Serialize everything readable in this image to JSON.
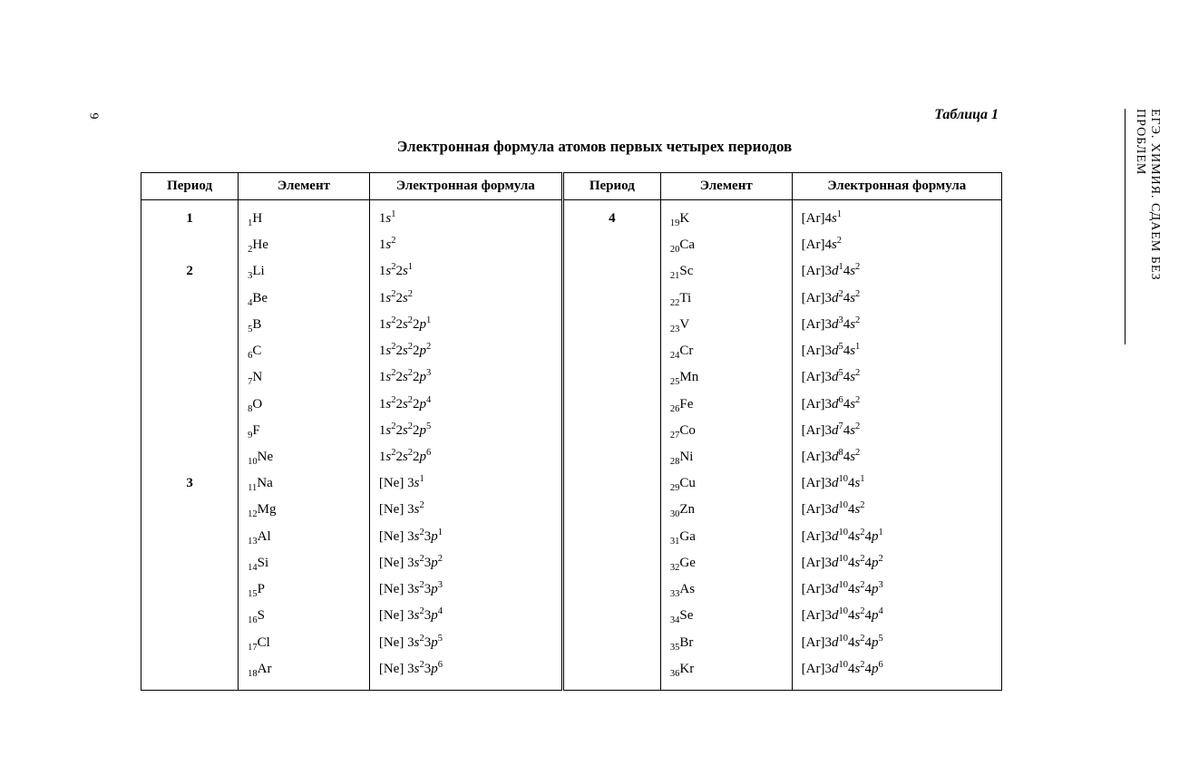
{
  "page_number_left": "6",
  "side_text": "ЕГЭ. ХИМИЯ. СДАЕМ БЕЗ ПРОБЛЕМ",
  "table_label": "Таблица 1",
  "title": "Электронная формула атомов первых четырех периодов",
  "headers": {
    "period": "Период",
    "element": "Элемент",
    "formula": "Электронная формула"
  },
  "rows": [
    {
      "p1": "1",
      "z1": "1",
      "sym1": "H",
      "f1": [
        [
          "1"
        ],
        [
          "s",
          "1"
        ]
      ],
      "p2": "4",
      "z2": "19",
      "sym2": "K",
      "f2": [
        [
          "[Ar]4"
        ],
        [
          "s",
          "1"
        ]
      ]
    },
    {
      "p1": "",
      "z1": "2",
      "sym1": "He",
      "f1": [
        [
          "1"
        ],
        [
          "s",
          "2"
        ]
      ],
      "p2": "",
      "z2": "20",
      "sym2": "Ca",
      "f2": [
        [
          "[Ar]4"
        ],
        [
          "s",
          "2"
        ]
      ]
    },
    {
      "p1": "2",
      "z1": "3",
      "sym1": "Li",
      "f1": [
        [
          "1"
        ],
        [
          "s",
          "2"
        ],
        [
          "2"
        ],
        [
          "s",
          "1"
        ]
      ],
      "p2": "",
      "z2": "21",
      "sym2": "Sc",
      "f2": [
        [
          "[Ar]3"
        ],
        [
          "d",
          "1"
        ],
        [
          "4"
        ],
        [
          "s",
          "2"
        ]
      ]
    },
    {
      "p1": "",
      "z1": "4",
      "sym1": "Be",
      "f1": [
        [
          "1"
        ],
        [
          "s",
          "2"
        ],
        [
          "2"
        ],
        [
          "s",
          "2"
        ]
      ],
      "p2": "",
      "z2": "22",
      "sym2": "Ti",
      "f2": [
        [
          "[Ar]3"
        ],
        [
          "d",
          "2"
        ],
        [
          "4"
        ],
        [
          "s",
          "2"
        ]
      ]
    },
    {
      "p1": "",
      "z1": "5",
      "sym1": "B",
      "f1": [
        [
          "1"
        ],
        [
          "s",
          "2"
        ],
        [
          "2"
        ],
        [
          "s",
          "2"
        ],
        [
          "2"
        ],
        [
          "p",
          "1"
        ]
      ],
      "p2": "",
      "z2": "23",
      "sym2": "V",
      "f2": [
        [
          "[Ar]3"
        ],
        [
          "d",
          "3"
        ],
        [
          "4"
        ],
        [
          "s",
          "2"
        ]
      ]
    },
    {
      "p1": "",
      "z1": "6",
      "sym1": "C",
      "f1": [
        [
          "1"
        ],
        [
          "s",
          "2"
        ],
        [
          "2"
        ],
        [
          "s",
          "2"
        ],
        [
          "2"
        ],
        [
          "p",
          "2"
        ]
      ],
      "p2": "",
      "z2": "24",
      "sym2": "Cr",
      "f2": [
        [
          "[Ar]3"
        ],
        [
          "d",
          "5"
        ],
        [
          "4"
        ],
        [
          "s",
          "1"
        ]
      ]
    },
    {
      "p1": "",
      "z1": "7",
      "sym1": "N",
      "f1": [
        [
          "1"
        ],
        [
          "s",
          "2"
        ],
        [
          "2"
        ],
        [
          "s",
          "2"
        ],
        [
          "2"
        ],
        [
          "p",
          "3"
        ]
      ],
      "p2": "",
      "z2": "25",
      "sym2": "Mn",
      "f2": [
        [
          "[Ar]3"
        ],
        [
          "d",
          "5"
        ],
        [
          "4"
        ],
        [
          "s",
          "2"
        ]
      ]
    },
    {
      "p1": "",
      "z1": "8",
      "sym1": "O",
      "f1": [
        [
          "1"
        ],
        [
          "s",
          "2"
        ],
        [
          "2"
        ],
        [
          "s",
          "2"
        ],
        [
          "2"
        ],
        [
          "p",
          "4"
        ]
      ],
      "p2": "",
      "z2": "26",
      "sym2": "Fe",
      "f2": [
        [
          "[Ar]3"
        ],
        [
          "d",
          "6"
        ],
        [
          "4"
        ],
        [
          "s",
          "2"
        ]
      ]
    },
    {
      "p1": "",
      "z1": "9",
      "sym1": "F",
      "f1": [
        [
          "1"
        ],
        [
          "s",
          "2"
        ],
        [
          "2"
        ],
        [
          "s",
          "2"
        ],
        [
          "2"
        ],
        [
          "p",
          "5"
        ]
      ],
      "p2": "",
      "z2": "27",
      "sym2": "Co",
      "f2": [
        [
          "[Ar]3"
        ],
        [
          "d",
          "7"
        ],
        [
          "4"
        ],
        [
          "s",
          "2"
        ]
      ]
    },
    {
      "p1": "",
      "z1": "10",
      "sym1": "Ne",
      "f1": [
        [
          "1"
        ],
        [
          "s",
          "2"
        ],
        [
          "2"
        ],
        [
          "s",
          "2"
        ],
        [
          "2"
        ],
        [
          "p",
          "6"
        ]
      ],
      "p2": "",
      "z2": "28",
      "sym2": "Ni",
      "f2": [
        [
          "[Ar]3"
        ],
        [
          "d",
          "8"
        ],
        [
          "4"
        ],
        [
          "s",
          "2"
        ]
      ]
    },
    {
      "p1": "3",
      "z1": "11",
      "sym1": "Na",
      "f1": [
        [
          "[Ne] 3"
        ],
        [
          "s",
          "1"
        ]
      ],
      "p2": "",
      "z2": "29",
      "sym2": "Cu",
      "f2": [
        [
          "[Ar]3"
        ],
        [
          "d",
          "10"
        ],
        [
          "4"
        ],
        [
          "s",
          "1"
        ]
      ]
    },
    {
      "p1": "",
      "z1": "12",
      "sym1": "Mg",
      "f1": [
        [
          "[Ne] 3"
        ],
        [
          "s",
          "2"
        ]
      ],
      "p2": "",
      "z2": "30",
      "sym2": "Zn",
      "f2": [
        [
          "[Ar]3"
        ],
        [
          "d",
          "10"
        ],
        [
          "4"
        ],
        [
          "s",
          "2"
        ]
      ]
    },
    {
      "p1": "",
      "z1": "13",
      "sym1": "Al",
      "f1": [
        [
          "[Ne] 3"
        ],
        [
          "s",
          "2"
        ],
        [
          "3"
        ],
        [
          "p",
          "1"
        ]
      ],
      "p2": "",
      "z2": "31",
      "sym2": "Ga",
      "f2": [
        [
          "[Ar]3"
        ],
        [
          "d",
          "10"
        ],
        [
          "4"
        ],
        [
          "s",
          "2"
        ],
        [
          "4"
        ],
        [
          "p",
          "1"
        ]
      ]
    },
    {
      "p1": "",
      "z1": "14",
      "sym1": "Si",
      "f1": [
        [
          "[Ne] 3"
        ],
        [
          "s",
          "2"
        ],
        [
          "3"
        ],
        [
          "p",
          "2"
        ]
      ],
      "p2": "",
      "z2": "32",
      "sym2": "Ge",
      "f2": [
        [
          "[Ar]3"
        ],
        [
          "d",
          "10"
        ],
        [
          "4"
        ],
        [
          "s",
          "2"
        ],
        [
          "4"
        ],
        [
          "p",
          "2"
        ]
      ]
    },
    {
      "p1": "",
      "z1": "15",
      "sym1": "P",
      "f1": [
        [
          "[Ne] 3"
        ],
        [
          "s",
          "2"
        ],
        [
          "3"
        ],
        [
          "p",
          "3"
        ]
      ],
      "p2": "",
      "z2": "33",
      "sym2": "As",
      "f2": [
        [
          "[Ar]3"
        ],
        [
          "d",
          "10"
        ],
        [
          "4"
        ],
        [
          "s",
          "2"
        ],
        [
          "4"
        ],
        [
          "p",
          "3"
        ]
      ]
    },
    {
      "p1": "",
      "z1": "16",
      "sym1": "S",
      "f1": [
        [
          "[Ne] 3"
        ],
        [
          "s",
          "2"
        ],
        [
          "3"
        ],
        [
          "p",
          "4"
        ]
      ],
      "p2": "",
      "z2": "34",
      "sym2": "Se",
      "f2": [
        [
          "[Ar]3"
        ],
        [
          "d",
          "10"
        ],
        [
          "4"
        ],
        [
          "s",
          "2"
        ],
        [
          "4"
        ],
        [
          "p",
          "4"
        ]
      ]
    },
    {
      "p1": "",
      "z1": "17",
      "sym1": "Cl",
      "f1": [
        [
          "[Ne] 3"
        ],
        [
          "s",
          "2"
        ],
        [
          "3"
        ],
        [
          "p",
          "5"
        ]
      ],
      "p2": "",
      "z2": "35",
      "sym2": "Br",
      "f2": [
        [
          "[Ar]3"
        ],
        [
          "d",
          "10"
        ],
        [
          "4"
        ],
        [
          "s",
          "2"
        ],
        [
          "4"
        ],
        [
          "p",
          "5"
        ]
      ]
    },
    {
      "p1": "",
      "z1": "18",
      "sym1": "Ar",
      "f1": [
        [
          "[Ne] 3"
        ],
        [
          "s",
          "2"
        ],
        [
          "3"
        ],
        [
          "p",
          "6"
        ]
      ],
      "p2": "",
      "z2": "36",
      "sym2": "Kr",
      "f2": [
        [
          "[Ar]3"
        ],
        [
          "d",
          "10"
        ],
        [
          "4"
        ],
        [
          "s",
          "2"
        ],
        [
          "4"
        ],
        [
          "p",
          "6"
        ]
      ]
    }
  ]
}
